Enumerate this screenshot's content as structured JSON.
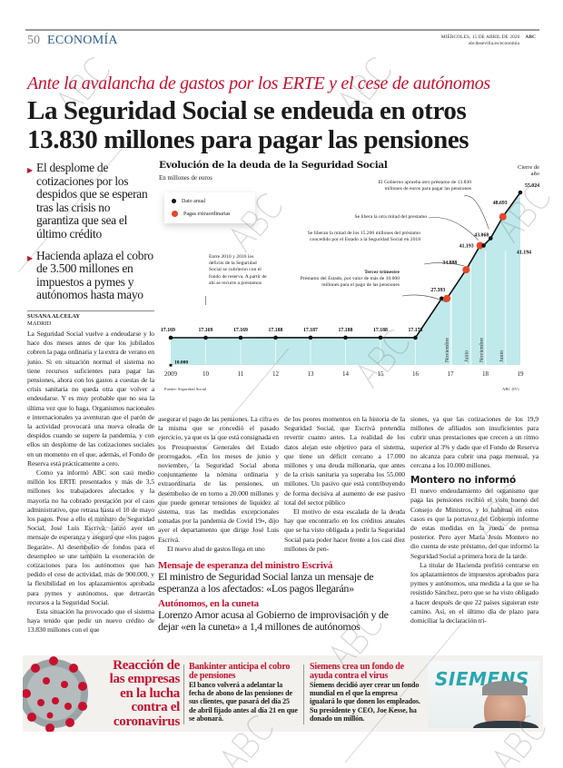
{
  "header": {
    "page_number": "50",
    "section": "ECONOMÍA",
    "date": "MIÉRCOLES, 15 DE ABRIL DE 2020",
    "brand": "ABC",
    "url": "abcdesevilla.es/economia"
  },
  "article": {
    "kicker": "Ante la avalancha de gastos por los ERTE y el cese de autónomos",
    "headline_line1": "La Seguridad Social se endeuda en otros",
    "headline_line2": "13.830 millones para pagar las pensiones",
    "bullets": [
      "El desplome de cotizaciones por los despidos que se esperan tras las crisis no garantiza que sea el último crédito",
      "Hacienda aplaza el cobro de 3.500 millones en impuestos a pymes y autónomos hasta mayo"
    ],
    "author": "SUSANA ALCELAY",
    "location": "MADRID",
    "col1": [
      "La Seguridad Social vuelve a endeudarse y lo hace dos meses antes de que los jubilados cobren la paga ordinaria y la extra de verano en junio. Si en situación normal el sistema no tiene recursos suficientes para pagar las pensiones, ahora con los gastos a cuestas de la crisis sanitaria no queda otra que volver a endeudarse. Y es muy probable que no sea la última vez que lo haga. Organismos nacionales e internacionales ya aventuran que el parón de la actividad provocará una nueva oleada de despidos cuando se supere la pandemia, y con ellos un desplome de las cotizaciones sociales en un momento en el que, además, el Fondo de Reserva está prácticamente a cero.",
      "Como ya informó ABC son casi medio millón los ERTE presentados y más de 3,5 millones los trabajadores afectados y la mayoría no ha cobrado prestación por el caos administrativo, que retrasa hasta el 10 de mayo los pagos. Pese a ello el ministro de Seguridad Social, José Luis Escrivá, lanzó ayer un mensaje de esperanza y aseguró que «los pagos llegarán». Al desembolso de fondos para el desempleo se une también la exoneración de cotizaciones para los autónomos que han pedido el cese de actividad, más de 900.000, y la flexibilidad en los aplazamientos aprobada para pymes y autónomos, que detraerán recursos a la Seguridad Social.",
      "Esta situación ha provocado que el sistema haya tenido que pedir un nuevo crédito de 13.830 millones con el que"
    ],
    "col2": [
      "asegurar el pago de las pensiones. La cifra es la misma que se concedió el pasado ejercicio, ya que es la que está consignada en los Presupuestos Generales del Estado prorrogados. «En los meses de junio y noviembre, la Seguridad Social abona conjuntamente la nómina ordinaria y extraordinaria de las pensiones, un desembolso de en torno a 20.000 millones y que puede generar tensiones de liquidez al sistema, tras las medidas excepcionales tomadas por la pandemia de Covid 19», dijo ayer el departamento que dirige José Luis Escrivá.",
      "El nuevo alud de gastos llega en uno"
    ],
    "col3": [
      "de los peores momentos en la historia de la Seguridad Social, que Escrivá pretendía revertir cuanto antes. La realidad de los datos alejan este objetivo para el sistema, que tiene un déficit cercano a 17.000 millones y una deuda millonaria, que antes de la crisis sanitaria ya superaba los 55.000 millones. Un pasivo que está contribuyendo de forma decisiva al aumento de ese pasivo total del sector público",
      "El motivo de esta escalada de la deuda hay que encontrarlo en los créditos anuales que se ha visto obligada a pedir la Seguridad Social para poder hacer frente a los casi diez millones de pen-"
    ],
    "col4": [
      "siones, ya que las cotizaciones de los 19,9 millones de afiliados son insuficientes para cubrir unas prestaciones que crecen a un ritmo superior al 3% y dado que el Fondo de Reserva no alcanza para cubrir una paga mensual, ya cercana a los 10.000 millones.",
      "El nuevo endeudamiento del organismo que paga las pensiones recibió el visto bueno del Consejo de Ministros, y lo habitual en estos casos es que la portavoz del Gobierno informe de estas medidas en la rueda de prensa posterior. Pero ayer María Jesús Montero no dio cuenta de este préstamo, del que informó la Seguridad Social a primera hora de la tarde.",
      "La titular de Hacienda prefirió centrarse en los aplazamientos de impuestos aprobados para pymes y autónomos, una medida a la que se ha resistido Sánchez, pero que se ha visto obligado a hacer después de que 22 países siguieran este camino. Así, en el último día de plazo para domiciliar la declaración tri-"
    ],
    "col4_subhead": "Montero no informó"
  },
  "related": [
    {
      "title": "Mensaje de esperanza del ministro Escrivá",
      "summary": "El ministro de Seguridad Social lanza un mensaje de esperanza a los afectados: «Los pagos llegarán»"
    },
    {
      "title": "Autónomos, en la cuneta",
      "summary": "Lorenzo Amor acusa al Gobierno de improvisación y de dejar «en la cuneta» a 1,4 millones de autónomos"
    }
  ],
  "band": {
    "title": "Reacción de las empresas en la lucha contra el coronavirus",
    "items": [
      {
        "title": "Bankinter anticipa el cobro de pensiones",
        "text": "El banco volverá a adelantar la fecha de abono de las pensiones de sus clientes, que pasará del día 25 de abril fijado antes al día 21 en que se abonará."
      },
      {
        "title": "Siemens crea un fondo de ayuda contra el virus",
        "text": "Siemens decidió ayer crear un fondo mundial en el que la empresa igualará lo que donen los empleados. Su presidente y CEO, Joe Kesse, ha donado un millón."
      }
    ],
    "photo_logo": "SIEMENS"
  },
  "watermark": "ABC",
  "colors": {
    "accent": "#c8102e",
    "section": "#2a5d8a",
    "area": "#bfe9ea",
    "extra": "#e8452c",
    "annual": "#111111",
    "band": "#f2f1ed"
  },
  "chart_data": {
    "type": "line",
    "title": "Evolución de la deuda de la Seguridad Social",
    "subtitle": "En millones de euros",
    "legend": [
      {
        "label": "Dato anual",
        "color": "#111111"
      },
      {
        "label": "Pagas extraordinarias",
        "color": "#e8452c"
      }
    ],
    "x_ticks": [
      "2009",
      "10",
      "11",
      "12",
      "13",
      "14",
      "15",
      "16",
      "17",
      "18",
      "19"
    ],
    "xlim": [
      2009,
      2019
    ],
    "month_labels": [
      {
        "x": 2016.9,
        "label": "Noviembre"
      },
      {
        "x": 2017.45,
        "label": "Junio"
      },
      {
        "x": 2017.88,
        "label": "Noviembre"
      },
      {
        "x": 2018.45,
        "label": "Junio"
      }
    ],
    "initial_point": {
      "x": 2009,
      "value": 10000,
      "label": "10.000"
    },
    "points": [
      {
        "x": 2009,
        "value": 17169,
        "kind": "annual",
        "label": "17.169"
      },
      {
        "x": 2010,
        "value": 17169,
        "kind": "annual",
        "label": "17.169"
      },
      {
        "x": 2011,
        "value": 17169,
        "kind": "annual",
        "label": "17.169"
      },
      {
        "x": 2012,
        "value": 17188,
        "kind": "annual",
        "label": "17.188"
      },
      {
        "x": 2013,
        "value": 17187,
        "kind": "annual",
        "label": "17.187"
      },
      {
        "x": 2014,
        "value": 17188,
        "kind": "annual",
        "label": "17.188"
      },
      {
        "x": 2015,
        "value": 17188,
        "kind": "annual",
        "label": "17.188"
      },
      {
        "x": 2016,
        "value": 17173,
        "kind": "annual",
        "label": "17.173"
      },
      {
        "x": 2016.75,
        "value": 27393,
        "kind": "annual",
        "label": "27.393"
      },
      {
        "x": 2016.9,
        "value": 27393,
        "kind": "extra",
        "label": ""
      },
      {
        "x": 2017.45,
        "value": 34888,
        "kind": "extra",
        "label": "34.888"
      },
      {
        "x": 2017.85,
        "value": 41193,
        "kind": "extra",
        "label": "41.193"
      },
      {
        "x": 2017.95,
        "value": 41194,
        "kind": "annual",
        "label": "41.194"
      },
      {
        "x": 2018.15,
        "value": 43068,
        "kind": "annual",
        "label": "43.068"
      },
      {
        "x": 2018.5,
        "value": 48693,
        "kind": "extra",
        "label": "48.693"
      },
      {
        "x": 2019,
        "value": 55024,
        "kind": "annual",
        "label": "55.024"
      }
    ],
    "end_label": "Cierre de año",
    "annotations": {
      "a2010": "Entre 2010 y 2016 los déficits de la Seguridad Social se cubrieron con el fondo de reserva. A partir de ahí se recurre a préstamos",
      "tercer_title": "Tercer trimestre",
      "tercer": "Préstamo del Estado, por valor de más de 10.000 millones para el pago de las pensiones",
      "mitad": "Se liberan la mitad de los 15.200 millones del préstamo concedido por el Estado a la Seguridad Social en 2018",
      "otra": "Se libera la otra mitad del prestamo",
      "gobierno": "El Gobierno aprueba otro préstamo de 13.830 millones de euros para pagar las pensiones"
    },
    "source": "Fuente: Seguridad Social",
    "credit": "ABC (IV)"
  }
}
